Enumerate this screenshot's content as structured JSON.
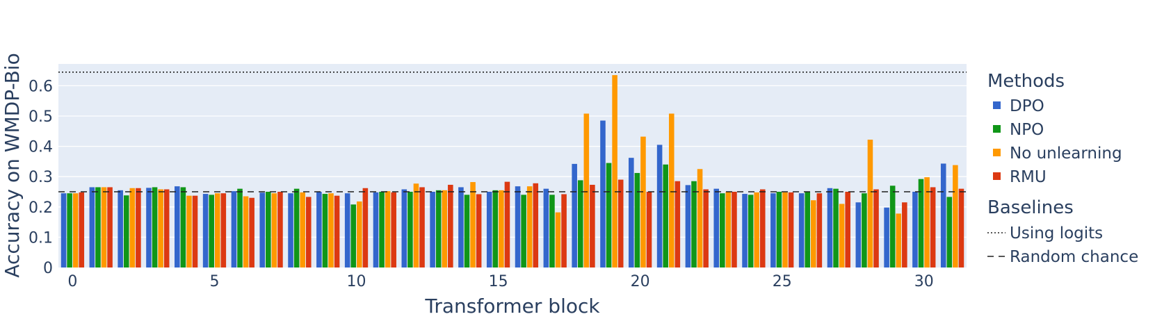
{
  "chart_data": {
    "type": "bar",
    "xlabel": "Transformer block",
    "ylabel": "Accuracy on WMDP-Bio",
    "x": [
      0,
      1,
      2,
      3,
      4,
      5,
      6,
      7,
      8,
      9,
      10,
      11,
      12,
      13,
      14,
      15,
      16,
      17,
      18,
      19,
      20,
      21,
      22,
      23,
      24,
      25,
      26,
      27,
      28,
      29,
      30,
      31
    ],
    "x_ticks": [
      0,
      5,
      10,
      15,
      20,
      25,
      30
    ],
    "y_ticks": [
      0,
      0.1,
      0.2,
      0.3,
      0.4,
      0.5,
      0.6
    ],
    "y_tick_labels": [
      "0",
      "0.1",
      "0.2",
      "0.3",
      "0.4",
      "0.5",
      "0.6"
    ],
    "ylim": [
      0,
      0.672
    ],
    "grid": true,
    "legend_groups": [
      {
        "title": "Methods",
        "group": "series"
      },
      {
        "title": "Baselines",
        "group": "baselines"
      }
    ],
    "series": [
      {
        "name": "DPO",
        "color": "#3366cc",
        "values": [
          0.245,
          0.265,
          0.255,
          0.263,
          0.268,
          0.243,
          0.252,
          0.247,
          0.245,
          0.25,
          0.245,
          0.248,
          0.258,
          0.25,
          0.265,
          0.25,
          0.268,
          0.26,
          0.342,
          0.485,
          0.362,
          0.405,
          0.272,
          0.26,
          0.243,
          0.245,
          0.245,
          0.262,
          0.215,
          0.198,
          0.25,
          0.343
        ]
      },
      {
        "name": "NPO",
        "color": "#109618",
        "values": [
          0.245,
          0.265,
          0.238,
          0.265,
          0.265,
          0.24,
          0.26,
          0.25,
          0.26,
          0.243,
          0.208,
          0.25,
          0.25,
          0.255,
          0.24,
          0.255,
          0.24,
          0.24,
          0.288,
          0.345,
          0.312,
          0.34,
          0.285,
          0.245,
          0.24,
          0.25,
          0.25,
          0.26,
          0.245,
          0.27,
          0.292,
          0.233
        ]
      },
      {
        "name": "No unlearning",
        "color": "#ff9900",
        "values": [
          0.245,
          0.265,
          0.262,
          0.258,
          0.237,
          0.245,
          0.235,
          0.245,
          0.248,
          0.245,
          0.218,
          0.252,
          0.277,
          0.255,
          0.282,
          0.255,
          0.268,
          0.182,
          0.508,
          0.635,
          0.432,
          0.508,
          0.325,
          0.25,
          0.248,
          0.248,
          0.222,
          0.21,
          0.422,
          0.178,
          0.298,
          0.338
        ]
      },
      {
        "name": "RMU",
        "color": "#dc3912",
        "values": [
          0.248,
          0.265,
          0.262,
          0.258,
          0.237,
          0.245,
          0.23,
          0.25,
          0.233,
          0.237,
          0.262,
          0.248,
          0.265,
          0.273,
          0.242,
          0.283,
          0.278,
          0.242,
          0.273,
          0.29,
          0.25,
          0.285,
          0.258,
          0.25,
          0.258,
          0.248,
          0.245,
          0.25,
          0.258,
          0.215,
          0.265,
          0.26
        ]
      }
    ],
    "baselines": [
      {
        "name": "Using logits",
        "value": 0.645,
        "dash": "dot"
      },
      {
        "name": "Random chance",
        "value": 0.25,
        "dash": "dash"
      }
    ]
  }
}
